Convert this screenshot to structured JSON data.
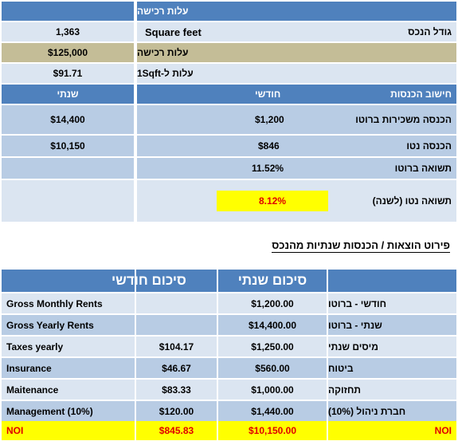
{
  "top": {
    "header": {
      "label": "עלות רכישה"
    },
    "size_row": {
      "label": "גודל הנכס",
      "unit": "Square feet",
      "value": "1,363"
    },
    "cost_row": {
      "label": "עלות רכישה",
      "value": "$125,000"
    },
    "sqft_row": {
      "label": "עלות ל-1Sqft",
      "value": "$91.71"
    },
    "income_header": {
      "label": "חישוב הכנסות",
      "monthly": "חודשי",
      "yearly": "שנתי"
    },
    "gross_rent_row": {
      "label": "הכנסה משכירות ברוטו",
      "monthly": "$1,200",
      "yearly": "$14,400"
    },
    "net_income_row": {
      "label": "הכנסה נטו",
      "monthly": "$846",
      "yearly": "$10,150"
    },
    "gross_yield_row": {
      "label": "תשואה ברוטו",
      "value": "11.52%"
    },
    "net_yield_row": {
      "label": "תשואה נטו (לשנה)",
      "value": "8.12%"
    }
  },
  "section_title": "פירוט הוצאות / הכנסות שנתיות מהנכס",
  "bottom": {
    "header": {
      "yearly_summary": "סיכום שנתי",
      "monthly_summary": "סיכום חודשי"
    },
    "rows": [
      {
        "en": "Gross Monthly Rents",
        "monthly": "",
        "yearly": "$1,200.00",
        "he": "חודשי - ברוטו"
      },
      {
        "en": "Gross Yearly Rents",
        "monthly": "",
        "yearly": "$14,400.00",
        "he": "שנתי - ברוטו"
      },
      {
        "en": "Taxes yearly",
        "monthly": "$104.17",
        "yearly": "$1,250.00",
        "he": "מיסים שנתי"
      },
      {
        "en": "Insurance",
        "monthly": "$46.67",
        "yearly": "$560.00",
        "he": "ביטוח"
      },
      {
        "en": "Maitenance",
        "monthly": "$83.33",
        "yearly": "$1,000.00",
        "he": "תחזוקה"
      },
      {
        "en": "Management (10%)",
        "monthly": "$120.00",
        "yearly": "$1,440.00",
        "he": "חברת ניהול (10%)"
      }
    ],
    "noi_row": {
      "en": "NOI",
      "monthly": "$845.83",
      "yearly": "$10,150.00",
      "he": "NOI"
    }
  },
  "colors": {
    "header_blue": "#4f81bd",
    "light_blue": "#dbe5f1",
    "mid_blue": "#b8cce4",
    "tan": "#c4bd97",
    "highlight": "#ffff00",
    "noi_red": "#e00000"
  }
}
